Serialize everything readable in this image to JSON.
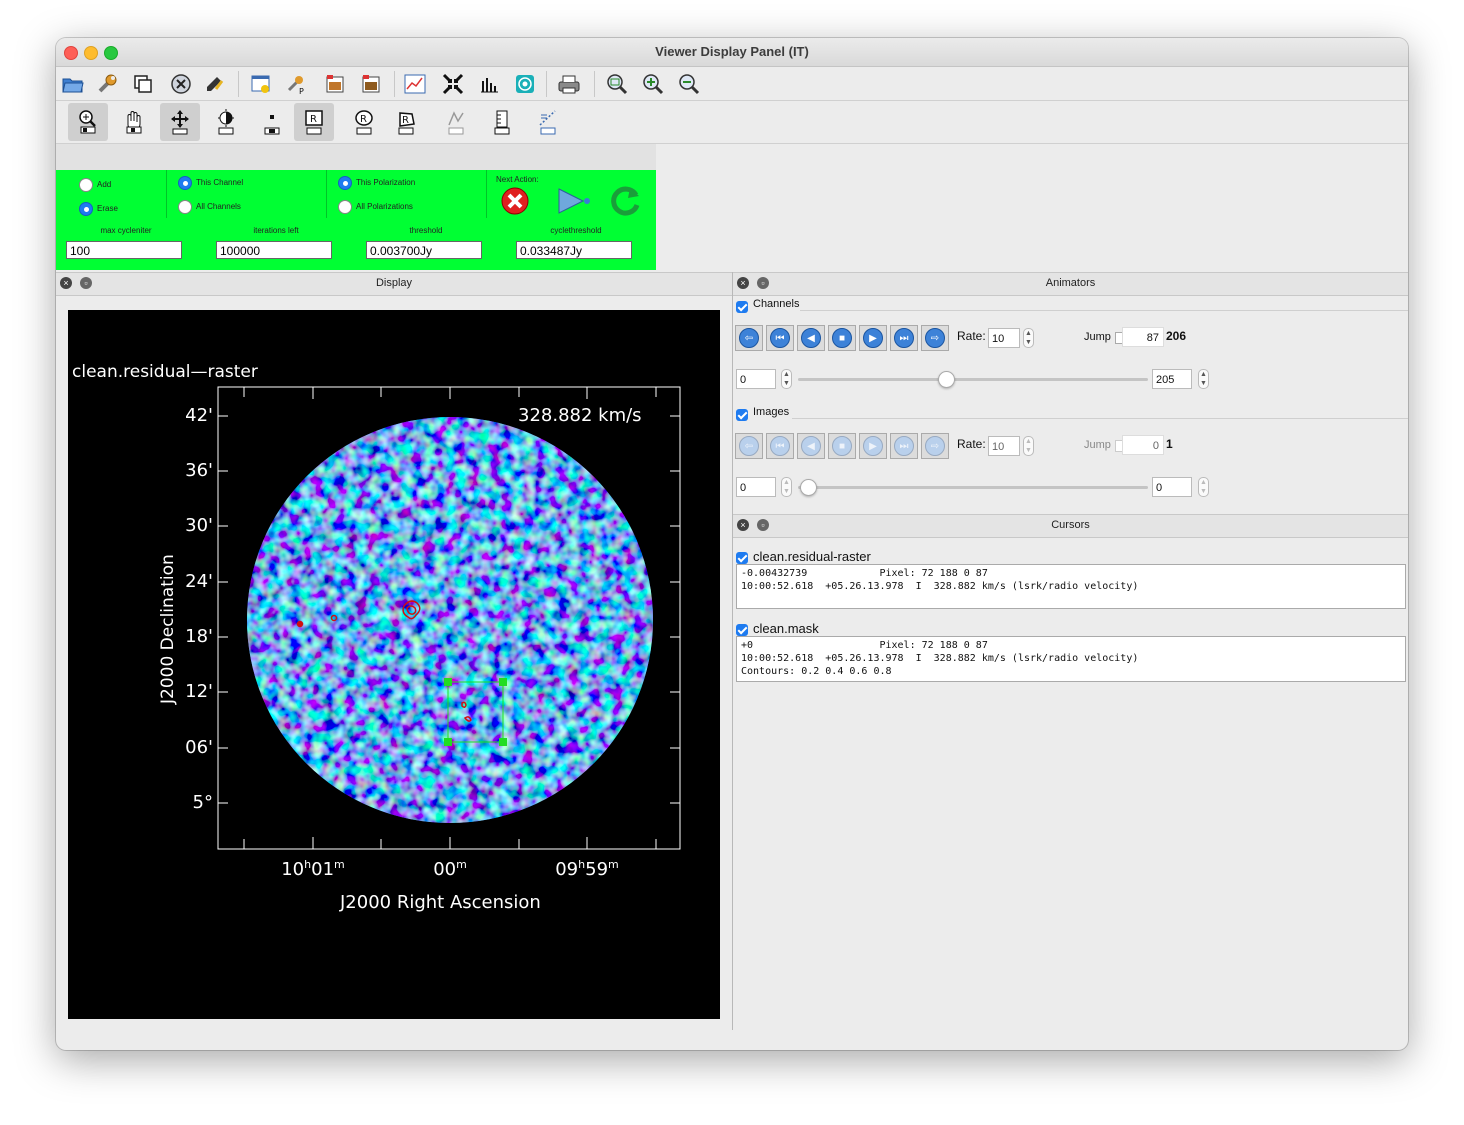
{
  "window": {
    "title": "Viewer Display Panel (IT)"
  },
  "toolbar": {
    "icons": [
      "open-folder-icon",
      "wrench-icon",
      "copy-icon",
      "close-circle-icon",
      "hand-edit-icon",
      "new-panel-icon",
      "panel-options-icon",
      "save-image-icon",
      "print-image-icon",
      "histogram-line-icon",
      "shrink-icon",
      "bar-chart-icon",
      "target-icon",
      "printer-icon",
      "zoom-fit-icon",
      "zoom-in-icon",
      "zoom-out-icon"
    ]
  },
  "mouse_tools": {
    "icons": [
      "zoom-tool-icon",
      "pan-tool-icon",
      "move-tool-icon",
      "contrast-tool-icon",
      "point-tool-icon",
      "rect-region-icon",
      "ellipse-region-icon",
      "polygon-region-icon",
      "polyline-icon",
      "ruler-icon",
      "positionvelocity-icon"
    ]
  },
  "clean": {
    "add_label": "Add",
    "erase_label": "Erase",
    "this_channel_label": "This Channel",
    "all_channels_label": "All Channels",
    "this_pol_label": "This Polarization",
    "all_pols_label": "All Polarizations",
    "next_action_label": "Next Action:",
    "max_cycleniter_label": "max cycleniter",
    "max_cycleniter": "100",
    "iterations_left_label": "iterations left",
    "iterations_left": "100000",
    "threshold_label": "threshold",
    "threshold": "0.003700Jy",
    "cyclethreshold_label": "cyclethreshold",
    "cyclethreshold": "0.033487Jy"
  },
  "display": {
    "title": "Display",
    "image_name": "clean.residual—raster",
    "velocity": "328.882 km/s",
    "y_axis_label": "J2000 Declination",
    "x_axis_label": "J2000 Right Ascension",
    "y_ticks": [
      "42'",
      "36'",
      "30'",
      "24'",
      "18'",
      "12'",
      "06'",
      "5°"
    ],
    "x_ticks": [
      {
        "main": "10",
        "sup1": "h",
        "mid": "01",
        "sup2": "m"
      },
      {
        "main": "",
        "sup1": "",
        "mid": "00",
        "sup2": "m"
      },
      {
        "main": "09",
        "sup1": "h",
        "mid": "59",
        "sup2": "m"
      }
    ]
  },
  "animators": {
    "title": "Animators",
    "channels": {
      "label": "Channels",
      "rate_label": "Rate:",
      "rate": "10",
      "jump_label": "Jump",
      "jump_value": "87",
      "total": "206",
      "start": "0",
      "end": "205",
      "position": 0.42
    },
    "images": {
      "label": "Images",
      "rate_label": "Rate:",
      "rate": "10",
      "jump_label": "Jump",
      "jump_value": "0",
      "total": "1",
      "start": "0",
      "end": "0",
      "position": 0
    }
  },
  "cursors": {
    "title": "Cursors",
    "items": [
      {
        "name": "clean.residual-raster",
        "text": "-0.00432739            Pixel: 72 188 0 87\n10:00:52.618  +05.26.13.978  I  328.882 km/s (lsrk/radio velocity)"
      },
      {
        "name": "clean.mask",
        "text": "+0                     Pixel: 72 188 0 87\n10:00:52.618  +05.26.13.978  I  328.882 km/s (lsrk/radio velocity)\nContours: 0.2 0.4 0.6 0.8"
      }
    ]
  },
  "colors": {
    "clean_panel": "#00ff33",
    "raster_blue": "#1f5fe0",
    "mask_green": "#22dd22",
    "contour_red": "#d01010"
  }
}
